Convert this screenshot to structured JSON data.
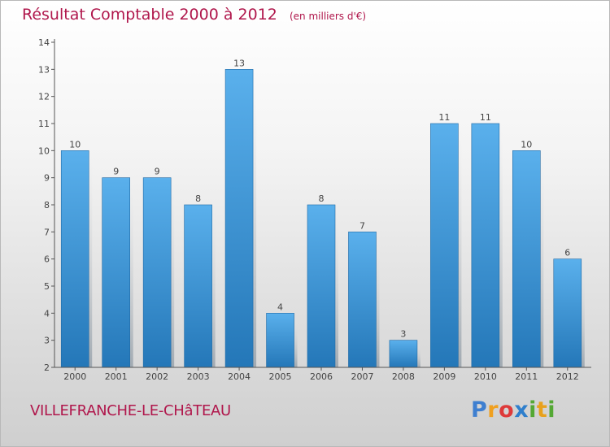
{
  "header": {
    "title": "Résultat Comptable 2000 à 2012",
    "subtitle": "(en milliers d'€)"
  },
  "footer": {
    "town": "VILLEFRANCHE-LE-CHâTEAU",
    "logo_text": "Proxiti"
  },
  "colors": {
    "title": "#b0174c",
    "bar_top": "#5ab0ec",
    "bar_bottom": "#2477b8"
  },
  "chart_data": {
    "type": "bar",
    "title": "Résultat Comptable 2000 à 2012",
    "subtitle": "(en milliers d'€)",
    "xlabel": "",
    "ylabel": "",
    "categories": [
      "2000",
      "2001",
      "2002",
      "2003",
      "2004",
      "2005",
      "2006",
      "2007",
      "2008",
      "2009",
      "2010",
      "2011",
      "2012"
    ],
    "values": [
      10,
      9,
      9,
      8,
      13,
      4,
      8,
      7,
      3,
      11,
      11,
      10,
      6
    ],
    "ylim": [
      2,
      14
    ],
    "yticks": [
      2,
      3,
      4,
      5,
      6,
      7,
      8,
      9,
      10,
      11,
      12,
      13,
      14
    ],
    "grid": false,
    "legend": "none"
  }
}
